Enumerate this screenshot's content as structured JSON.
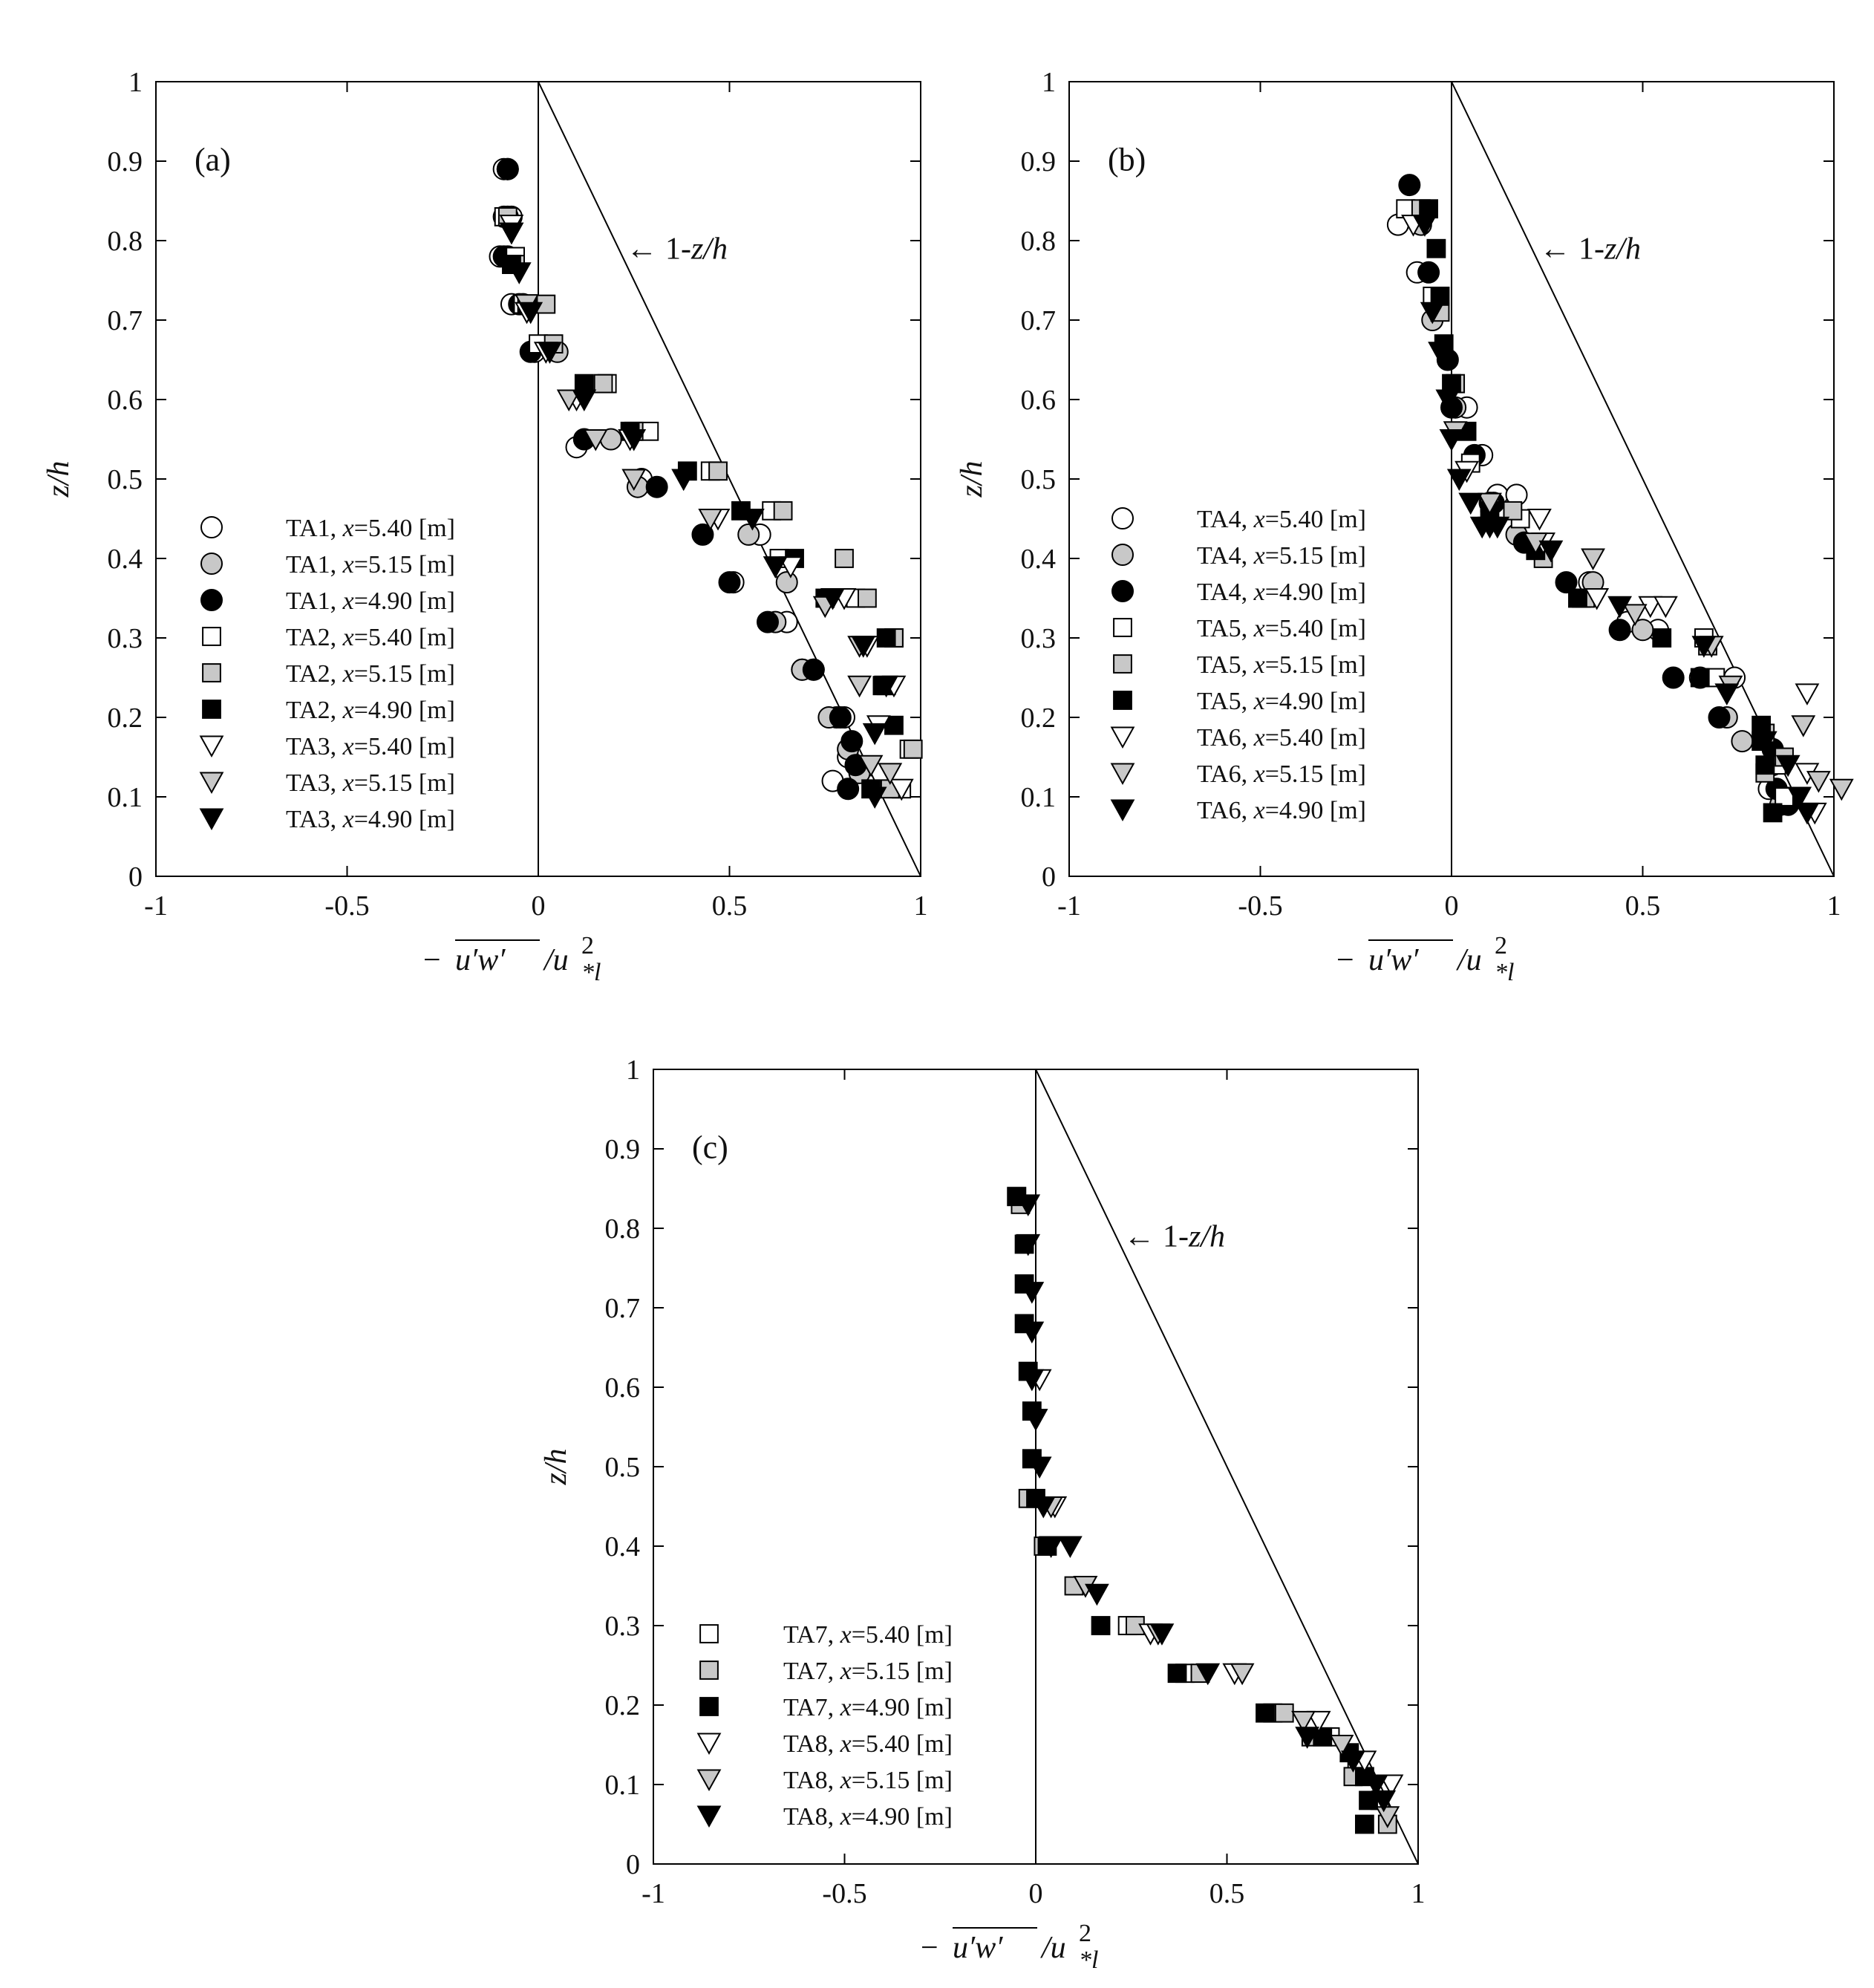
{
  "figure": {
    "x_axis_label": "− u′w′ / u*l²",
    "y_axis_label": "z/h",
    "line_annotation": "← 1-z/h"
  },
  "chart_data": [
    {
      "type": "scatter",
      "panel_label": "(a)",
      "xlim": [
        -1,
        1
      ],
      "ylim": [
        0,
        1
      ],
      "xticks": [
        "-1",
        "-0.5",
        "0",
        "0.5",
        "1"
      ],
      "yticks": [
        "0",
        "0.1",
        "0.2",
        "0.3",
        "0.4",
        "0.5",
        "0.6",
        "0.7",
        "0.8",
        "0.9",
        "1"
      ],
      "xlabel": "− u′w′ / u*l²",
      "ylabel": "z/h",
      "reference_lines": [
        {
          "label": "1-z/h",
          "x": [
            0,
            1
          ],
          "y": [
            1,
            0
          ]
        },
        {
          "label": "",
          "x": [
            0,
            0
          ],
          "y": [
            0,
            1
          ]
        }
      ],
      "legend_position": "lower-left",
      "series": [
        {
          "name": "TA1, x=5.40 [m]",
          "marker": "circle",
          "fill": "#ffffff",
          "x": [
            -0.09,
            -0.07,
            -0.1,
            -0.07,
            -0.01,
            0.1,
            0.27,
            0.58,
            0.51,
            0.65,
            0.69,
            0.72,
            0.78,
            0.8,
            0.81,
            0.77
          ],
          "y": [
            0.89,
            0.83,
            0.78,
            0.72,
            0.66,
            0.54,
            0.5,
            0.43,
            0.37,
            0.32,
            0.26,
            0.26,
            0.2,
            0.2,
            0.15,
            0.12
          ]
        },
        {
          "name": "TA1, x=5.15 [m]",
          "marker": "circle",
          "fill": "#c8c8c8",
          "x": [
            -0.08,
            -0.09,
            -0.08,
            -0.04,
            0.05,
            0.19,
            0.26,
            0.55,
            0.65,
            0.62,
            0.69,
            0.76,
            0.81,
            0.84
          ],
          "y": [
            0.89,
            0.83,
            0.78,
            0.72,
            0.66,
            0.55,
            0.49,
            0.43,
            0.37,
            0.32,
            0.26,
            0.2,
            0.16,
            0.13
          ]
        },
        {
          "name": "TA1, x=4.90 [m]",
          "marker": "circle",
          "fill": "#000000",
          "x": [
            -0.08,
            -0.08,
            -0.09,
            -0.05,
            -0.02,
            0.12,
            0.31,
            0.43,
            0.5,
            0.6,
            0.72,
            0.79,
            0.82,
            0.83,
            0.81
          ],
          "y": [
            0.89,
            0.83,
            0.78,
            0.72,
            0.66,
            0.55,
            0.49,
            0.43,
            0.37,
            0.32,
            0.26,
            0.2,
            0.17,
            0.14,
            0.11
          ]
        },
        {
          "name": "TA2, x=5.40 [m]",
          "marker": "square",
          "fill": "#ffffff",
          "x": [
            -0.09,
            -0.06,
            -0.04,
            0.0,
            0.18,
            0.29,
            0.45,
            0.61,
            0.63,
            0.83,
            0.93,
            0.9,
            0.97,
            0.95
          ],
          "y": [
            0.83,
            0.78,
            0.72,
            0.67,
            0.62,
            0.56,
            0.51,
            0.46,
            0.4,
            0.35,
            0.3,
            0.24,
            0.16,
            0.11
          ]
        },
        {
          "name": "TA2, x=5.15 [m]",
          "marker": "square",
          "fill": "#c8c8c8",
          "x": [
            -0.08,
            -0.06,
            0.02,
            0.04,
            0.17,
            0.25,
            0.47,
            0.64,
            0.8,
            0.86,
            0.93,
            0.91,
            0.98,
            0.92
          ],
          "y": [
            0.83,
            0.77,
            0.72,
            0.67,
            0.62,
            0.56,
            0.51,
            0.46,
            0.4,
            0.35,
            0.3,
            0.24,
            0.16,
            0.11
          ]
        },
        {
          "name": "TA2, x=4.90 [m]",
          "marker": "square",
          "fill": "#000000",
          "x": [
            -0.07,
            -0.03,
            0.12,
            0.24,
            0.39,
            0.53,
            0.67,
            0.75,
            0.91,
            0.9,
            0.93,
            0.87
          ],
          "y": [
            0.77,
            0.72,
            0.62,
            0.56,
            0.51,
            0.46,
            0.4,
            0.35,
            0.3,
            0.24,
            0.19,
            0.11
          ]
        },
        {
          "name": "TA3, x=5.40 [m]",
          "marker": "triangle-down",
          "fill": "#ffffff",
          "x": [
            -0.07,
            -0.03,
            0.02,
            0.1,
            0.24,
            0.38,
            0.47,
            0.66,
            0.8,
            0.86,
            0.93,
            0.89,
            0.95
          ],
          "y": [
            0.82,
            0.71,
            0.66,
            0.6,
            0.55,
            0.5,
            0.45,
            0.39,
            0.35,
            0.29,
            0.24,
            0.19,
            0.11
          ]
        },
        {
          "name": "TA3, x=5.15 [m]",
          "marker": "triangle-down",
          "fill": "#c8c8c8",
          "x": [
            -0.07,
            -0.03,
            0.08,
            0.15,
            0.25,
            0.45,
            0.62,
            0.75,
            0.84,
            0.84,
            0.87,
            0.92
          ],
          "y": [
            0.81,
            0.72,
            0.6,
            0.55,
            0.5,
            0.45,
            0.39,
            0.34,
            0.29,
            0.24,
            0.14,
            0.13
          ]
        },
        {
          "name": "TA3, x=4.90 [m]",
          "marker": "triangle-down",
          "fill": "#000000",
          "x": [
            -0.07,
            -0.05,
            -0.02,
            0.03,
            0.12,
            0.25,
            0.38,
            0.56,
            0.62,
            0.77,
            0.85,
            0.91,
            0.88,
            0.88
          ],
          "y": [
            0.81,
            0.76,
            0.71,
            0.66,
            0.6,
            0.55,
            0.5,
            0.45,
            0.39,
            0.35,
            0.29,
            0.24,
            0.18,
            0.1
          ]
        }
      ]
    },
    {
      "type": "scatter",
      "panel_label": "(b)",
      "xlim": [
        -1,
        1
      ],
      "ylim": [
        0,
        1
      ],
      "xticks": [
        "-1",
        "-0.5",
        "0",
        "0.5",
        "1"
      ],
      "yticks": [
        "0",
        "0.1",
        "0.2",
        "0.3",
        "0.4",
        "0.5",
        "0.6",
        "0.7",
        "0.8",
        "0.9",
        "1"
      ],
      "xlabel": "− u′w′ / u*l²",
      "ylabel": "z/h",
      "reference_lines": [
        {
          "label": "1-z/h",
          "x": [
            0,
            1
          ],
          "y": [
            1,
            0
          ]
        },
        {
          "label": "",
          "x": [
            0,
            0
          ],
          "y": [
            0,
            1
          ]
        }
      ],
      "legend_position": "lower-left",
      "series": [
        {
          "name": "TA4, x=5.40 [m]",
          "marker": "circle",
          "fill": "#ffffff",
          "x": [
            -0.14,
            -0.09,
            0.04,
            0.08,
            0.12,
            0.17,
            0.36,
            0.46,
            0.54,
            0.74,
            0.83
          ],
          "y": [
            0.82,
            0.76,
            0.59,
            0.53,
            0.48,
            0.48,
            0.37,
            0.32,
            0.31,
            0.25,
            0.11
          ]
        },
        {
          "name": "TA4, x=5.15 [m]",
          "marker": "circle",
          "fill": "#c8c8c8",
          "x": [
            -0.08,
            -0.05,
            0.01,
            0.1,
            0.17,
            0.37,
            0.5,
            0.65,
            0.72,
            0.76,
            0.84,
            0.86
          ],
          "y": [
            0.82,
            0.7,
            0.59,
            0.47,
            0.43,
            0.37,
            0.31,
            0.25,
            0.2,
            0.17,
            0.14,
            0.09
          ]
        },
        {
          "name": "TA4, x=4.90 [m]",
          "marker": "circle",
          "fill": "#000000",
          "x": [
            -0.11,
            -0.06,
            -0.01,
            0.0,
            0.06,
            0.11,
            0.19,
            0.3,
            0.44,
            0.58,
            0.7,
            0.84,
            0.85,
            0.88
          ],
          "y": [
            0.87,
            0.76,
            0.65,
            0.59,
            0.53,
            0.47,
            0.42,
            0.37,
            0.31,
            0.25,
            0.2,
            0.16,
            0.11,
            0.09
          ]
        },
        {
          "name": "TA5, x=5.40 [m]",
          "marker": "square",
          "fill": "#ffffff",
          "x": [
            -0.12,
            -0.05,
            0.05,
            0.1,
            0.18,
            0.24,
            0.34,
            0.66,
            0.69,
            0.85,
            0.87
          ],
          "y": [
            0.84,
            0.73,
            0.52,
            0.47,
            0.45,
            0.41,
            0.35,
            0.3,
            0.25,
            0.14,
            0.1
          ]
        },
        {
          "name": "TA5, x=5.15 [m]",
          "marker": "square",
          "fill": "#c8c8c8",
          "x": [
            -0.08,
            -0.03,
            0.01,
            0.1,
            0.16,
            0.24,
            0.35,
            0.67,
            0.82,
            0.87,
            0.82
          ],
          "y": [
            0.84,
            0.71,
            0.62,
            0.47,
            0.46,
            0.4,
            0.35,
            0.29,
            0.18,
            0.15,
            0.13
          ]
        },
        {
          "name": "TA5, x=4.90 [m]",
          "marker": "square",
          "fill": "#000000",
          "x": [
            -0.06,
            -0.04,
            -0.03,
            -0.02,
            0.0,
            0.04,
            0.1,
            0.22,
            0.33,
            0.55,
            0.65,
            0.81,
            0.81,
            0.82,
            0.84
          ],
          "y": [
            0.84,
            0.79,
            0.73,
            0.67,
            0.62,
            0.56,
            0.46,
            0.41,
            0.35,
            0.3,
            0.25,
            0.19,
            0.17,
            0.14,
            0.08
          ]
        },
        {
          "name": "TA6, x=5.40 [m]",
          "marker": "triangle-down",
          "fill": "#ffffff",
          "x": [
            -0.1,
            0.04,
            0.23,
            0.24,
            0.38,
            0.52,
            0.56,
            0.93,
            0.93,
            0.95
          ],
          "y": [
            0.82,
            0.51,
            0.45,
            0.42,
            0.35,
            0.34,
            0.34,
            0.23,
            0.13,
            0.08
          ]
        },
        {
          "name": "TA6, x=5.15 [m]",
          "marker": "triangle-down",
          "fill": "#c8c8c8",
          "x": [
            -0.07,
            0.01,
            0.1,
            0.22,
            0.37,
            0.48,
            0.68,
            0.73,
            0.92,
            0.96,
            1.02
          ],
          "y": [
            0.82,
            0.56,
            0.47,
            0.42,
            0.4,
            0.33,
            0.29,
            0.24,
            0.19,
            0.12,
            0.11
          ]
        },
        {
          "name": "TA6, x=4.90 [m]",
          "marker": "triangle-down",
          "fill": "#000000",
          "x": [
            -0.07,
            -0.05,
            -0.03,
            -0.01,
            0.0,
            0.02,
            0.05,
            0.08,
            0.1,
            0.12,
            0.26,
            0.44,
            0.66,
            0.72,
            0.82,
            0.88,
            0.91,
            0.93
          ],
          "y": [
            0.82,
            0.71,
            0.66,
            0.6,
            0.55,
            0.5,
            0.47,
            0.44,
            0.44,
            0.44,
            0.41,
            0.34,
            0.29,
            0.23,
            0.17,
            0.14,
            0.1,
            0.08
          ]
        }
      ]
    },
    {
      "type": "scatter",
      "panel_label": "(c)",
      "xlim": [
        -1,
        1
      ],
      "ylim": [
        0,
        1
      ],
      "xticks": [
        "-1",
        "-0.5",
        "0",
        "0.5",
        "1"
      ],
      "yticks": [
        "0",
        "0.1",
        "0.2",
        "0.3",
        "0.4",
        "0.5",
        "0.6",
        "0.7",
        "0.8",
        "0.9",
        "1"
      ],
      "xlabel": "− u′w′ / u*l²",
      "ylabel": "z/h",
      "reference_lines": [
        {
          "label": "1-z/h",
          "x": [
            0,
            1
          ],
          "y": [
            1,
            0
          ]
        },
        {
          "label": "",
          "x": [
            0,
            0
          ],
          "y": [
            0,
            1
          ]
        }
      ],
      "legend_position": "lower-left",
      "series": [
        {
          "name": "TA7, x=5.40 [m]",
          "marker": "square",
          "fill": "#ffffff",
          "x": [
            -0.05,
            0.24,
            0.39,
            0.62,
            0.77,
            0.84,
            0.9
          ],
          "y": [
            0.84,
            0.3,
            0.24,
            0.19,
            0.16,
            0.13,
            0.08
          ]
        },
        {
          "name": "TA7, x=5.15 [m]",
          "marker": "square",
          "fill": "#c8c8c8",
          "x": [
            -0.04,
            -0.02,
            0.02,
            0.1,
            0.26,
            0.43,
            0.65,
            0.72,
            0.83,
            0.92
          ],
          "y": [
            0.83,
            0.46,
            0.4,
            0.35,
            0.3,
            0.24,
            0.19,
            0.16,
            0.11,
            0.05
          ]
        },
        {
          "name": "TA7, x=4.90 [m]",
          "marker": "square",
          "fill": "#000000",
          "x": [
            -0.05,
            -0.03,
            -0.03,
            -0.03,
            -0.02,
            -0.01,
            -0.01,
            -0.01,
            0.0,
            0.03,
            0.17,
            0.37,
            0.6,
            0.75,
            0.82,
            0.86,
            0.87,
            0.86
          ],
          "y": [
            0.84,
            0.78,
            0.73,
            0.68,
            0.62,
            0.57,
            0.51,
            0.51,
            0.46,
            0.4,
            0.3,
            0.24,
            0.19,
            0.16,
            0.14,
            0.11,
            0.08,
            0.05
          ]
        },
        {
          "name": "TA8, x=5.40 [m]",
          "marker": "triangle-down",
          "fill": "#ffffff",
          "x": [
            0.01,
            0.05,
            0.13,
            0.3,
            0.52,
            0.74,
            0.86,
            0.93
          ],
          "y": [
            0.61,
            0.45,
            0.35,
            0.29,
            0.24,
            0.18,
            0.13,
            0.1
          ]
        },
        {
          "name": "TA8, x=5.15 [m]",
          "marker": "triangle-down",
          "fill": "#c8c8c8",
          "x": [
            0.0,
            0.04,
            0.13,
            0.32,
            0.54,
            0.7,
            0.8,
            0.92
          ],
          "y": [
            0.56,
            0.45,
            0.35,
            0.29,
            0.24,
            0.18,
            0.15,
            0.06
          ]
        },
        {
          "name": "TA8, x=4.90 [m]",
          "marker": "triangle-down",
          "fill": "#000000",
          "x": [
            -0.02,
            -0.02,
            -0.01,
            -0.01,
            -0.01,
            0.0,
            0.01,
            0.02,
            0.04,
            0.09,
            0.16,
            0.33,
            0.45,
            0.71,
            0.83,
            0.89,
            0.91
          ],
          "y": [
            0.83,
            0.78,
            0.72,
            0.67,
            0.61,
            0.56,
            0.5,
            0.45,
            0.4,
            0.4,
            0.34,
            0.29,
            0.24,
            0.16,
            0.13,
            0.1,
            0.08
          ]
        }
      ]
    }
  ]
}
